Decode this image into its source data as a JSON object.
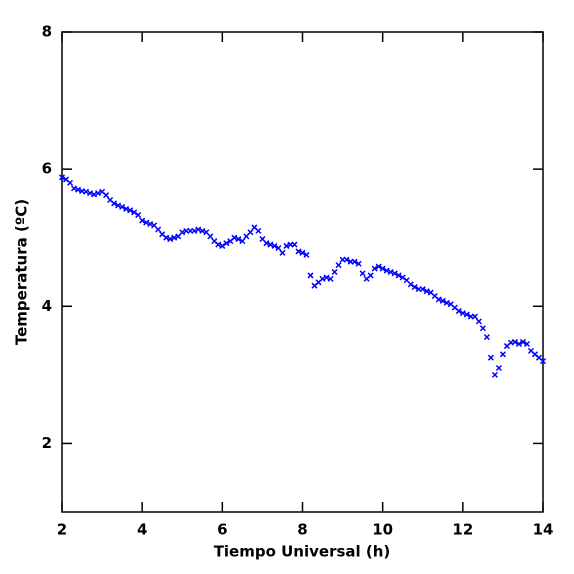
{
  "chart_data": {
    "type": "scatter",
    "xlabel": "Tiempo Universal (h)",
    "ylabel": "Temperatura (ºC)",
    "xlim": [
      2,
      14
    ],
    "ylim": [
      1,
      8
    ],
    "xticks": [
      2,
      4,
      6,
      8,
      10,
      12,
      14
    ],
    "yticks": [
      2,
      4,
      6,
      8
    ],
    "color": "#0000ff",
    "x": [
      2.0,
      2.1,
      2.2,
      2.3,
      2.4,
      2.5,
      2.6,
      2.7,
      2.8,
      2.9,
      3.0,
      3.1,
      3.2,
      3.3,
      3.4,
      3.5,
      3.6,
      3.7,
      3.8,
      3.9,
      4.0,
      4.1,
      4.2,
      4.3,
      4.4,
      4.5,
      4.6,
      4.7,
      4.8,
      4.9,
      5.0,
      5.1,
      5.2,
      5.3,
      5.4,
      5.5,
      5.6,
      5.7,
      5.8,
      5.9,
      6.0,
      6.1,
      6.2,
      6.3,
      6.4,
      6.5,
      6.6,
      6.7,
      6.8,
      6.9,
      7.0,
      7.1,
      7.2,
      7.3,
      7.4,
      7.5,
      7.6,
      7.7,
      7.8,
      7.9,
      8.0,
      8.1,
      8.2,
      8.3,
      8.4,
      8.5,
      8.6,
      8.7,
      8.8,
      8.9,
      9.0,
      9.1,
      9.2,
      9.3,
      9.4,
      9.5,
      9.6,
      9.7,
      9.8,
      9.9,
      10.0,
      10.1,
      10.2,
      10.3,
      10.4,
      10.5,
      10.6,
      10.7,
      10.8,
      10.9,
      11.0,
      11.1,
      11.2,
      11.3,
      11.4,
      11.5,
      11.6,
      11.7,
      11.8,
      11.9,
      12.0,
      12.1,
      12.2,
      12.3,
      12.4,
      12.5,
      12.6,
      12.7,
      12.8,
      12.9,
      13.0,
      13.1,
      13.2,
      13.3,
      13.4,
      13.5,
      13.6,
      13.7,
      13.8,
      13.9,
      14.0
    ],
    "values": [
      5.88,
      5.85,
      5.8,
      5.72,
      5.7,
      5.68,
      5.67,
      5.65,
      5.63,
      5.65,
      5.67,
      5.62,
      5.55,
      5.5,
      5.47,
      5.45,
      5.42,
      5.4,
      5.37,
      5.33,
      5.25,
      5.22,
      5.2,
      5.18,
      5.12,
      5.05,
      5.0,
      4.98,
      5.0,
      5.02,
      5.08,
      5.1,
      5.1,
      5.1,
      5.12,
      5.1,
      5.08,
      5.02,
      4.95,
      4.9,
      4.88,
      4.92,
      4.95,
      5.0,
      4.98,
      4.95,
      5.02,
      5.08,
      5.15,
      5.1,
      4.98,
      4.92,
      4.9,
      4.88,
      4.85,
      4.78,
      4.88,
      4.9,
      4.9,
      4.8,
      4.78,
      4.75,
      4.45,
      4.3,
      4.35,
      4.4,
      4.42,
      4.4,
      4.5,
      4.6,
      4.68,
      4.68,
      4.65,
      4.65,
      4.62,
      4.48,
      4.4,
      4.45,
      4.55,
      4.58,
      4.55,
      4.52,
      4.5,
      4.48,
      4.45,
      4.42,
      4.38,
      4.32,
      4.28,
      4.25,
      4.25,
      4.22,
      4.2,
      4.15,
      4.1,
      4.08,
      4.05,
      4.03,
      3.98,
      3.93,
      3.9,
      3.88,
      3.85,
      3.85,
      3.78,
      3.68,
      3.55,
      3.25,
      3.0,
      3.1,
      3.3,
      3.42,
      3.47,
      3.48,
      3.45,
      3.48,
      3.45,
      3.35,
      3.3,
      3.25,
      3.2
    ]
  }
}
